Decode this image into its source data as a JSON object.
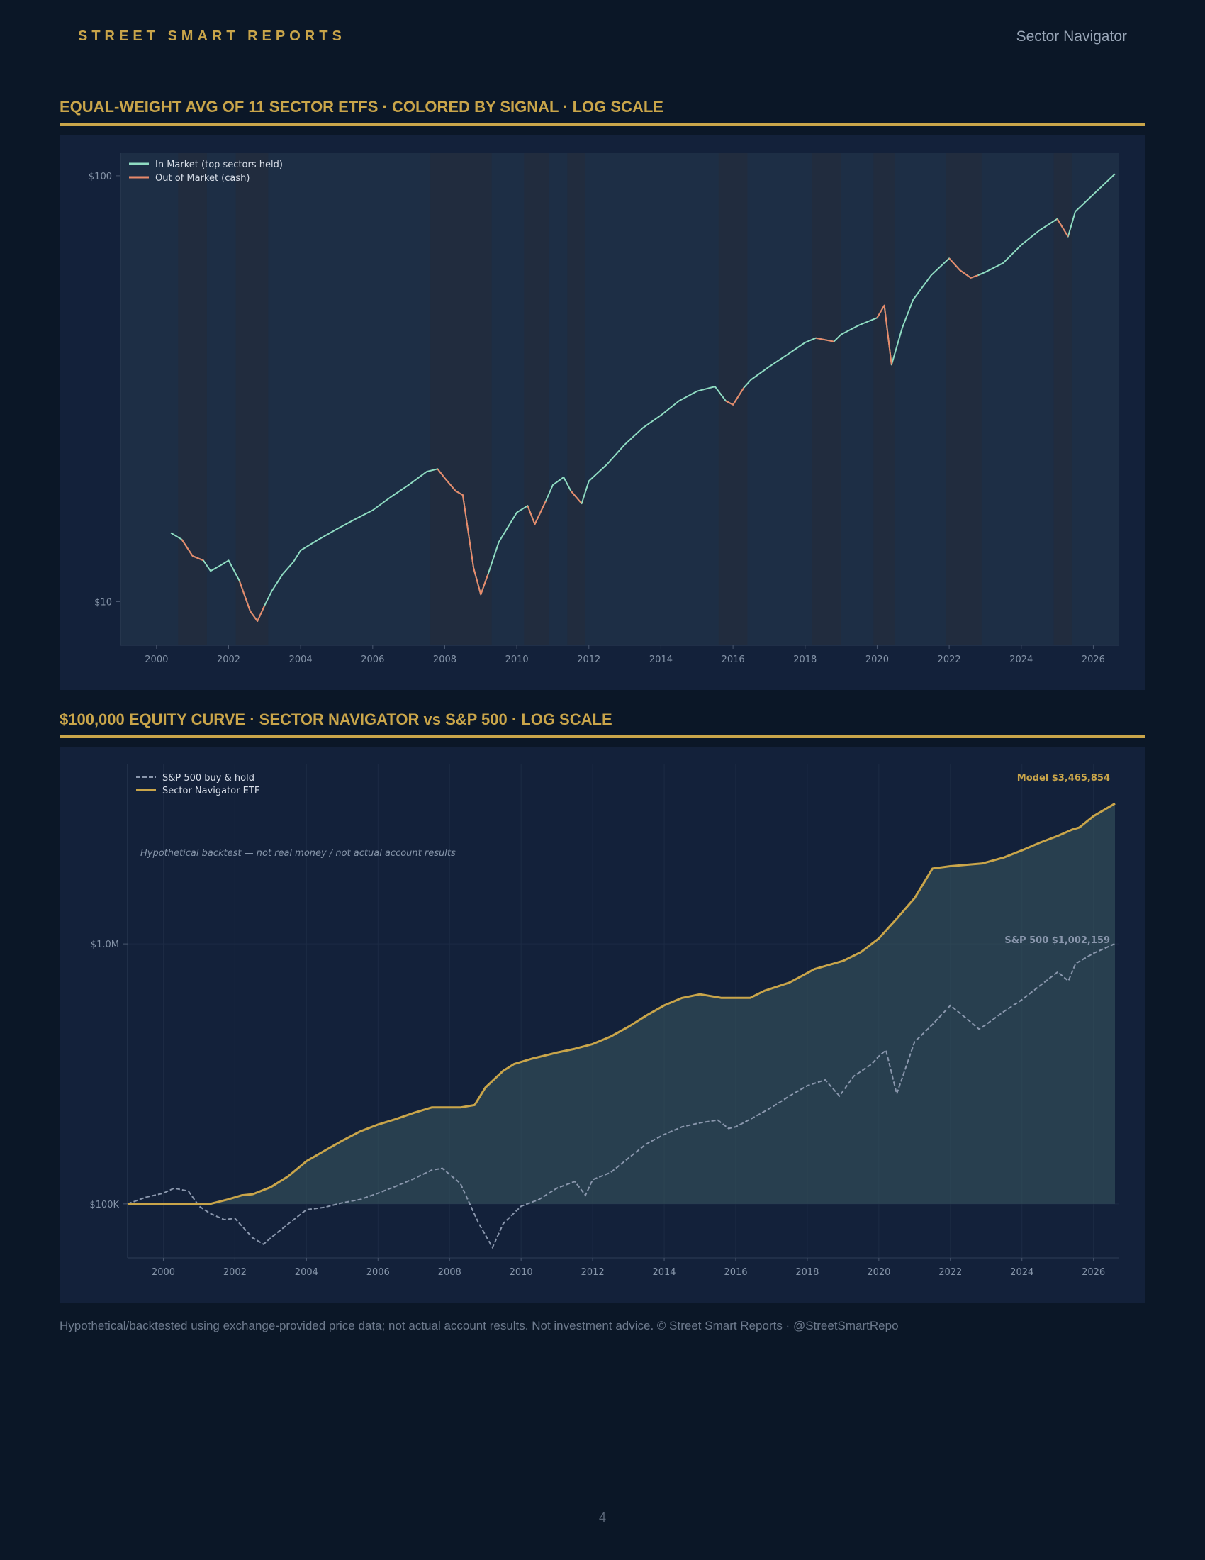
{
  "header": {
    "brand": "STREET SMART REPORTS",
    "product": "Sector Navigator"
  },
  "colors": {
    "accent_gold": "#c9a54a",
    "in_market": "#8fdcc2",
    "out_market": "#e8896a",
    "sp500": "#8a97ad",
    "background": "#0b1727",
    "panel": "#13213a"
  },
  "chart_data": [
    {
      "type": "line",
      "title": "EQUAL-WEIGHT AVG OF 11 SECTOR ETFS · COLORED BY SIGNAL · LOG SCALE",
      "yscale": "log",
      "xlim": [
        1999,
        2026.7
      ],
      "ylim": [
        7.9,
        113
      ],
      "xticks": [
        2000,
        2002,
        2004,
        2006,
        2008,
        2010,
        2012,
        2014,
        2016,
        2018,
        2020,
        2022,
        2024,
        2026
      ],
      "yticks": [
        {
          "value": 10,
          "label": "$10"
        },
        {
          "value": 100,
          "label": "$100"
        }
      ],
      "legend": {
        "position": "top-left",
        "entries": [
          "In Market (top sectors held)",
          "Out of Market (cash)"
        ]
      },
      "series": [
        {
          "name": "In Market (top sectors held)",
          "x": [
            2000.4,
            2000.7,
            2001.0,
            2001.3,
            2001.5,
            2001.8,
            2002.0,
            2002.3,
            2002.6,
            2002.8,
            2003.0,
            2003.2,
            2003.5,
            2003.8,
            2004.0,
            2004.5,
            2005.0,
            2005.5,
            2006.0,
            2006.5,
            2007.0,
            2007.5,
            2007.8,
            2008.0,
            2008.3,
            2008.5,
            2008.8,
            2009.0,
            2009.2,
            2009.5,
            2009.8,
            2010.0,
            2010.3,
            2010.5,
            2010.8,
            2011.0,
            2011.3,
            2011.5,
            2011.8,
            2012.0,
            2012.5,
            2013.0,
            2013.5,
            2014.0,
            2014.5,
            2015.0,
            2015.5,
            2015.8,
            2016.0,
            2016.3,
            2016.5,
            2017.0,
            2017.5,
            2018.0,
            2018.3,
            2018.8,
            2019.0,
            2019.5,
            2020.0,
            2020.2,
            2020.4,
            2020.7,
            2021.0,
            2021.5,
            2022.0,
            2022.3,
            2022.6,
            2022.8,
            2023.0,
            2023.5,
            2024.0,
            2024.5,
            2025.0,
            2025.3,
            2025.5,
            2026.0,
            2026.6
          ],
          "y": [
            14.5,
            14.0,
            12.8,
            12.5,
            11.8,
            12.2,
            12.5,
            11.2,
            9.5,
            9.0,
            9.8,
            10.6,
            11.6,
            12.4,
            13.2,
            14.0,
            14.8,
            15.6,
            16.4,
            17.6,
            18.8,
            20.2,
            20.5,
            19.5,
            18.2,
            17.8,
            12.0,
            10.4,
            11.6,
            13.8,
            15.2,
            16.2,
            16.8,
            15.2,
            17.2,
            18.8,
            19.6,
            18.2,
            17.0,
            19.2,
            21.0,
            23.4,
            25.6,
            27.4,
            29.6,
            31.2,
            32.0,
            29.6,
            29.0,
            31.8,
            33.2,
            35.6,
            38.0,
            40.6,
            41.6,
            40.8,
            42.4,
            44.6,
            46.4,
            49.6,
            36.0,
            44.0,
            51.2,
            58.4,
            64.0,
            60.0,
            57.6,
            58.4,
            59.4,
            62.4,
            68.8,
            74.4,
            79.2,
            72.0,
            82.4,
            90.4,
            101.0
          ]
        },
        {
          "name": "Out of Market (cash)",
          "segments": [
            {
              "x": [
                2000.7,
                2001.0,
                2001.3
              ],
              "y": [
                14.0,
                12.8,
                12.5
              ]
            },
            {
              "x": [
                2002.3,
                2002.6,
                2002.8,
                2003.0
              ],
              "y": [
                11.2,
                9.5,
                9.0,
                9.8
              ]
            },
            {
              "x": [
                2007.8,
                2008.0,
                2008.3,
                2008.5,
                2008.8,
                2009.0,
                2009.2
              ],
              "y": [
                20.5,
                19.5,
                18.2,
                17.8,
                12.0,
                10.4,
                11.6
              ]
            },
            {
              "x": [
                2010.3,
                2010.5,
                2010.8
              ],
              "y": [
                16.8,
                15.2,
                17.2
              ]
            },
            {
              "x": [
                2011.5,
                2011.8
              ],
              "y": [
                18.2,
                17.0
              ]
            },
            {
              "x": [
                2015.8,
                2016.0,
                2016.3
              ],
              "y": [
                29.6,
                29.0,
                31.8
              ]
            },
            {
              "x": [
                2018.3,
                2018.8
              ],
              "y": [
                41.6,
                40.8
              ]
            },
            {
              "x": [
                2020.0,
                2020.2,
                2020.4
              ],
              "y": [
                46.4,
                49.6,
                36.0
              ]
            },
            {
              "x": [
                2022.0,
                2022.3,
                2022.6,
                2022.8
              ],
              "y": [
                64.0,
                60.0,
                57.6,
                58.4
              ]
            },
            {
              "x": [
                2025.0,
                2025.3
              ],
              "y": [
                79.2,
                72.0
              ]
            }
          ]
        }
      ],
      "cash_periods": [
        [
          2000.6,
          2001.4
        ],
        [
          2002.2,
          2003.1
        ],
        [
          2007.6,
          2009.3
        ],
        [
          2010.2,
          2010.9
        ],
        [
          2011.4,
          2011.9
        ],
        [
          2015.6,
          2016.4
        ],
        [
          2018.2,
          2019.0
        ],
        [
          2019.9,
          2020.5
        ],
        [
          2021.9,
          2022.9
        ],
        [
          2024.9,
          2025.4
        ]
      ]
    },
    {
      "type": "area",
      "title": "$100,000 EQUITY CURVE · SECTOR NAVIGATOR vs S&P 500 · LOG SCALE",
      "yscale": "log",
      "xlim": [
        1999,
        2026.7
      ],
      "ylim": [
        62000,
        4900000
      ],
      "xticks": [
        2000,
        2002,
        2004,
        2006,
        2008,
        2010,
        2012,
        2014,
        2016,
        2018,
        2020,
        2022,
        2024,
        2026
      ],
      "yticks": [
        {
          "value": 100000,
          "label": "$100K"
        },
        {
          "value": 1000000,
          "label": "$1.0M"
        }
      ],
      "legend": {
        "position": "top-left",
        "entries": [
          "S&P 500 buy & hold",
          "Sector Navigator ETF"
        ]
      },
      "annotation": "Hypothetical backtest — not real money / not actual account results",
      "end_labels": {
        "model": "Model  $3,465,854",
        "sp500": "S&P 500  $1,002,159"
      },
      "series": [
        {
          "name": "S&P 500 buy & hold",
          "style": "dashed",
          "x": [
            1999.0,
            1999.5,
            2000.0,
            2000.3,
            2000.7,
            2001.0,
            2001.3,
            2001.7,
            2002.0,
            2002.5,
            2002.8,
            2003.0,
            2003.5,
            2004.0,
            2004.5,
            2005.0,
            2005.5,
            2006.0,
            2006.5,
            2007.0,
            2007.5,
            2007.8,
            2008.3,
            2008.8,
            2009.0,
            2009.2,
            2009.5,
            2010.0,
            2010.5,
            2011.0,
            2011.5,
            2011.8,
            2012.0,
            2012.5,
            2013.0,
            2013.5,
            2014.0,
            2014.5,
            2015.0,
            2015.5,
            2015.8,
            2016.0,
            2016.5,
            2017.0,
            2017.5,
            2018.0,
            2018.5,
            2018.9,
            2019.3,
            2019.8,
            2020.0,
            2020.2,
            2020.5,
            2021.0,
            2021.5,
            2022.0,
            2022.5,
            2022.8,
            2023.0,
            2023.5,
            2024.0,
            2024.5,
            2025.0,
            2025.3,
            2025.5,
            2026.0,
            2026.6
          ],
          "y": [
            100000,
            106000,
            110000,
            115000,
            112000,
            98000,
            92000,
            87000,
            88000,
            74000,
            70000,
            74000,
            84000,
            95000,
            97000,
            101000,
            104000,
            110000,
            117000,
            125000,
            135000,
            137000,
            120000,
            85000,
            76000,
            68000,
            84000,
            98000,
            104000,
            115000,
            122000,
            108000,
            124000,
            132000,
            150000,
            170000,
            185000,
            198000,
            205000,
            210000,
            195000,
            198000,
            215000,
            235000,
            260000,
            285000,
            300000,
            260000,
            310000,
            345000,
            370000,
            390000,
            265000,
            420000,
            490000,
            580000,
            510000,
            470000,
            490000,
            550000,
            610000,
            690000,
            780000,
            720000,
            840000,
            920000,
            1002159
          ]
        },
        {
          "name": "Sector Navigator ETF",
          "style": "solid",
          "x": [
            1999.0,
            2000.0,
            2001.3,
            2001.8,
            2002.2,
            2002.5,
            2003.0,
            2003.5,
            2004.0,
            2004.5,
            2005.0,
            2005.5,
            2006.0,
            2006.5,
            2007.0,
            2007.5,
            2008.3,
            2008.7,
            2009.0,
            2009.5,
            2009.8,
            2010.3,
            2011.0,
            2011.5,
            2012.0,
            2012.5,
            2013.0,
            2013.5,
            2014.0,
            2014.5,
            2015.0,
            2015.6,
            2016.4,
            2016.8,
            2017.5,
            2018.2,
            2019.0,
            2019.5,
            2020.0,
            2020.5,
            2021.0,
            2021.5,
            2022.0,
            2022.9,
            2023.5,
            2024.0,
            2024.5,
            2025.0,
            2025.4,
            2025.6,
            2026.0,
            2026.6
          ],
          "y": [
            100000,
            100000,
            100000,
            104000,
            108000,
            109000,
            116000,
            128000,
            146000,
            160000,
            175000,
            190000,
            202000,
            212000,
            224000,
            235000,
            235000,
            240000,
            280000,
            325000,
            345000,
            362000,
            382000,
            395000,
            412000,
            440000,
            480000,
            530000,
            580000,
            620000,
            640000,
            620000,
            620000,
            660000,
            710000,
            800000,
            860000,
            930000,
            1050000,
            1250000,
            1500000,
            1950000,
            1990000,
            2040000,
            2150000,
            2290000,
            2450000,
            2600000,
            2750000,
            2800000,
            3100000,
            3465854
          ]
        }
      ]
    }
  ],
  "footer": "Hypothetical/backtested using exchange-provided price data; not actual account results. Not investment advice. © Street Smart Reports · @StreetSmartRepo",
  "page_number": "4"
}
